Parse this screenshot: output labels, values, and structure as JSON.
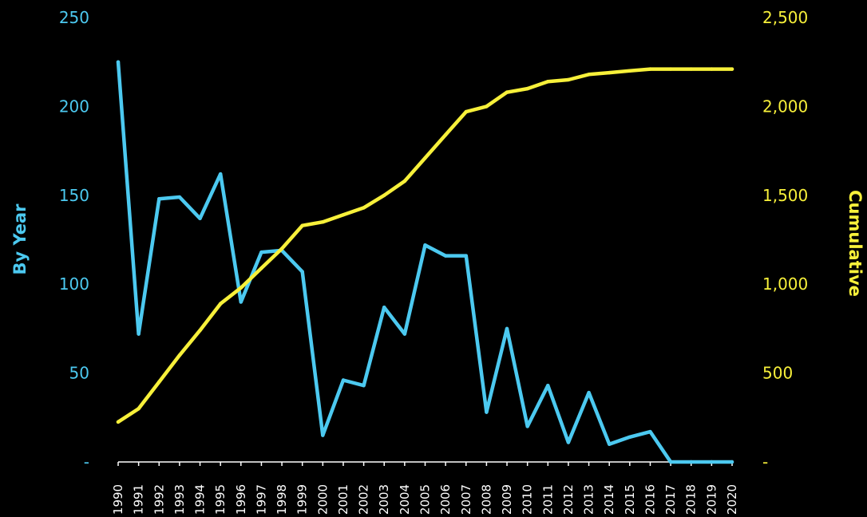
{
  "chart_data": {
    "type": "line",
    "title": "",
    "x": [
      1990,
      1991,
      1992,
      1993,
      1994,
      1995,
      1996,
      1997,
      1998,
      1999,
      2000,
      2001,
      2002,
      2003,
      2004,
      2005,
      2006,
      2007,
      2008,
      2009,
      2010,
      2011,
      2012,
      2013,
      2014,
      2015,
      2016,
      2017,
      2018,
      2019,
      2020
    ],
    "x_tick_labels": [
      "1990",
      "1991",
      "1992",
      "1993",
      "1994",
      "1995",
      "1996",
      "1997",
      "1998",
      "1999",
      "2000",
      "2001",
      "2002",
      "2003",
      "2004",
      "2005",
      "2006",
      "2007",
      "2008",
      "2009",
      "2010",
      "2011",
      "2012",
      "2013",
      "2014",
      "2015",
      "2016",
      "2017",
      "2018",
      "2019",
      "2020"
    ],
    "y_left": {
      "label": "By Year",
      "range": [
        0,
        250
      ],
      "ticks": [
        0,
        50,
        100,
        150,
        200,
        250
      ],
      "tick_labels": [
        "-",
        "50",
        "100",
        "150",
        "200",
        "250"
      ],
      "color": "#4cc9f0"
    },
    "y_right": {
      "label": "Cumulative",
      "range": [
        0,
        2500
      ],
      "ticks": [
        0,
        500,
        1000,
        1500,
        2000,
        2500
      ],
      "tick_labels": [
        "-",
        "500",
        "1,000",
        "1,500",
        "2,000",
        "2,500"
      ],
      "color": "#f7f03a"
    },
    "grid": false,
    "series": [
      {
        "axis": "left",
        "color": "#4cc9f0",
        "values": [
          225,
          72,
          148,
          149,
          137,
          162,
          90,
          118,
          119,
          107,
          15,
          46,
          43,
          87,
          72,
          122,
          116,
          116,
          28,
          75,
          20,
          43,
          11,
          39,
          10,
          14,
          17,
          0,
          0,
          0,
          0
        ]
      },
      {
        "axis": "right",
        "color": "#f7f03a",
        "values": [
          225,
          300,
          450,
          600,
          740,
          890,
          980,
          1090,
          1200,
          1330,
          1350,
          1390,
          1430,
          1500,
          1580,
          1710,
          1840,
          1970,
          2000,
          2080,
          2100,
          2140,
          2150,
          2180,
          2190,
          2200,
          2210,
          2210,
          2210,
          2210,
          2210
        ]
      }
    ]
  }
}
